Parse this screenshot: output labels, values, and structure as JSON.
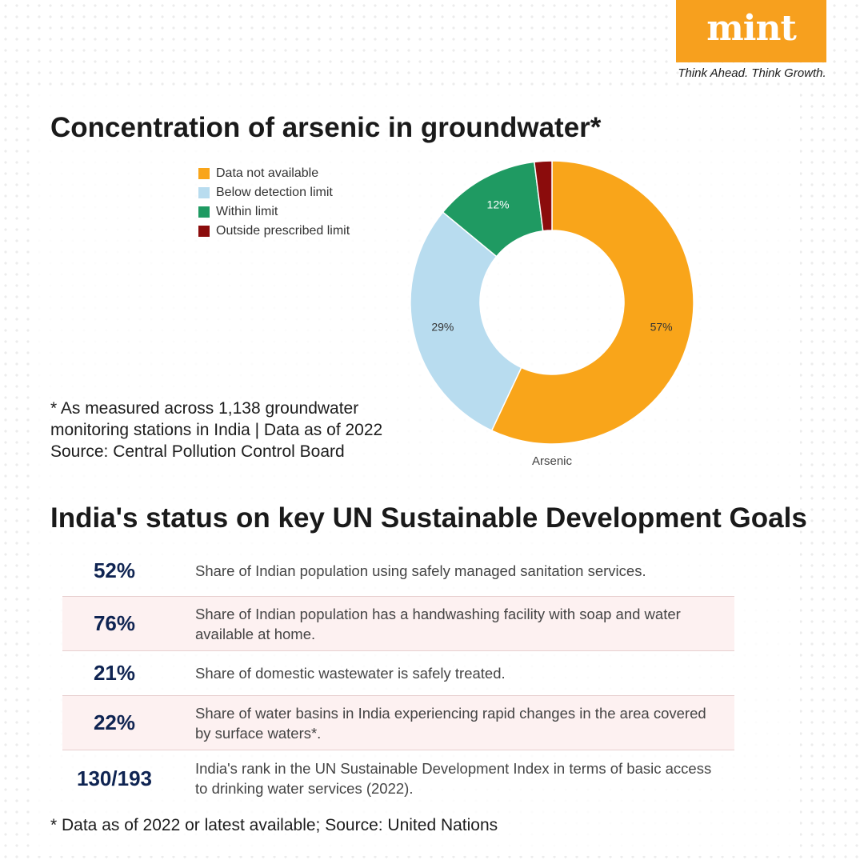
{
  "brand": {
    "name": "mint",
    "tagline": "Think Ahead. Think Growth.",
    "color": "#f7a01e"
  },
  "chart_data": {
    "type": "pie",
    "variant": "donut",
    "title": "Concentration of arsenic in groundwater*",
    "caption": "Arsenic",
    "categories": [
      "Data not available",
      "Below detection limit",
      "Within limit",
      "Outside prescribed limit"
    ],
    "values": [
      57,
      29,
      12,
      2
    ],
    "labels": [
      "57%",
      "29%",
      "12%",
      ""
    ],
    "colors": [
      "#f9a51a",
      "#b8dcef",
      "#1f9a62",
      "#8b0c0c"
    ],
    "legend_position": "top-left"
  },
  "chart_notes": [
    "* As measured across 1,138 groundwater",
    "monitoring stations in India | Data as of 2022",
    "Source: Central Pollution Control Board"
  ],
  "sdg": {
    "title": "India's status on key UN Sustainable Development Goals",
    "rows": [
      {
        "value": "52%",
        "desc": "Share of Indian population using safely managed sanitation services."
      },
      {
        "value": "76%",
        "desc": "Share of Indian population has a handwashing facility with soap and water available at home."
      },
      {
        "value": "21%",
        "desc": "Share of domestic wastewater is safely treated."
      },
      {
        "value": "22%",
        "desc": "Share of water basins in India experiencing rapid changes in the area covered by surface waters*."
      },
      {
        "value": "130/193",
        "desc": "India's rank in the UN Sustainable Development Index in terms of basic access to drinking water services (2022)."
      }
    ],
    "footer": "* Data as of 2022 or latest available; Source: United Nations"
  }
}
